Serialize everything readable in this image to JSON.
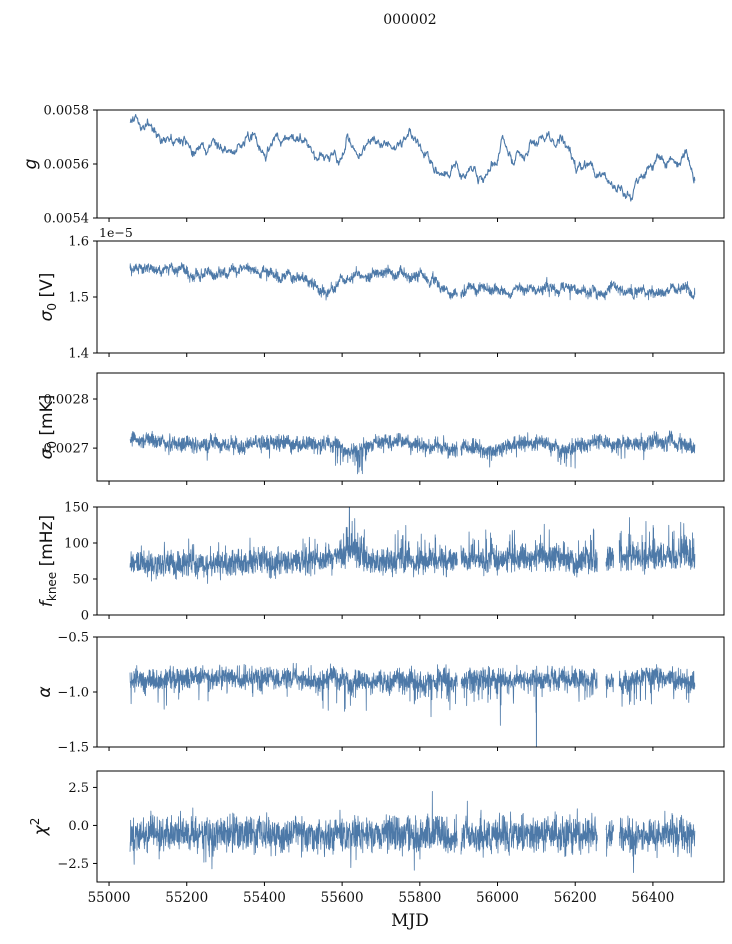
{
  "title": "000002",
  "colors": {
    "line": "#4d79a8",
    "axis": "#000000",
    "text": "#111111"
  },
  "x_axis": {
    "label": "MJD",
    "xlim": [
      54969,
      56583
    ],
    "data_range": [
      55054,
      56508
    ],
    "xticks": [
      55000,
      55200,
      55400,
      55600,
      55800,
      56000,
      56200,
      56400
    ],
    "xtick_labels": [
      "55000",
      "55200",
      "55400",
      "55600",
      "55800",
      "56000",
      "56200",
      "56400"
    ]
  },
  "chart_data": [
    {
      "id": "g",
      "type": "line",
      "ylabel": "g",
      "ylabel_parts": [
        {
          "t": "g",
          "style": "italic"
        }
      ],
      "ylim": [
        0.0054,
        0.0058
      ],
      "yticks": [
        0.0054,
        0.0056,
        0.0058
      ],
      "ytick_labels": [
        "0.0054",
        "0.0056",
        "0.0058"
      ],
      "offset_text": "",
      "seed": 11,
      "points": 1200,
      "line_width": 1.1,
      "trend": {
        "x": [
          55054,
          55070,
          55085,
          55105,
          55125,
          55150,
          55170,
          55195,
          55215,
          55235,
          55252,
          55268,
          55285,
          55305,
          55325,
          55345,
          55365,
          55385,
          55405,
          55425,
          55442,
          55458,
          55475,
          55492,
          55510,
          55530,
          55550,
          55568,
          55585,
          55600,
          55612,
          55625,
          55640,
          55658,
          55675,
          55695,
          55715,
          55735,
          55755,
          55775,
          55795,
          55815,
          55835,
          55855,
          55875,
          55895,
          55915,
          55932,
          55950,
          55968,
          55985,
          56000,
          56012,
          56028,
          56045,
          56065,
          56085,
          56105,
          56125,
          56145,
          56162,
          56180,
          56200,
          56220,
          56240,
          56260,
          56280,
          56300,
          56320,
          56345,
          56370,
          56395,
          56420,
          56445,
          56465,
          56485,
          56505
        ],
        "y": [
          0.00575,
          0.00578,
          0.00573,
          0.00574,
          0.00571,
          0.00567,
          0.00569,
          0.0057,
          0.00568,
          0.00567,
          0.00563,
          0.00568,
          0.00566,
          0.00569,
          0.00565,
          0.00568,
          0.00571,
          0.00569,
          0.00566,
          0.00572,
          0.00567,
          0.00573,
          0.0057,
          0.00569,
          0.00566,
          0.00562,
          0.00561,
          0.00563,
          0.0056,
          0.00561,
          0.00572,
          0.00567,
          0.00564,
          0.00567,
          0.0057,
          0.00568,
          0.0057,
          0.00569,
          0.0057,
          0.0057,
          0.00567,
          0.00563,
          0.00559,
          0.00557,
          0.00558,
          0.0056,
          0.00558,
          0.00561,
          0.00556,
          0.00552,
          0.00558,
          0.00561,
          0.0057,
          0.00567,
          0.00563,
          0.00562,
          0.00566,
          0.00566,
          0.00569,
          0.0057,
          0.00571,
          0.00567,
          0.0056,
          0.00556,
          0.00557,
          0.00555,
          0.00552,
          0.0055,
          0.00549,
          0.00545,
          0.00556,
          0.00562,
          0.0056,
          0.00562,
          0.00559,
          0.00561,
          0.00554
        ]
      },
      "noise": {
        "hw": 9e-06,
        "ar_amp": 1.3e-05,
        "ar_rho": 0.93
      },
      "gaps": [],
      "spikes": {
        "prob": 0,
        "scale": 0,
        "sign": 0
      },
      "zones": []
    },
    {
      "id": "sigma0_V",
      "type": "line",
      "ylabel": "σ0 [V]",
      "ylabel_parts": [
        {
          "t": "σ",
          "style": "italic"
        },
        {
          "t": "0",
          "pos": "sub"
        },
        {
          "t": " [V]"
        }
      ],
      "ylim": [
        1.4,
        1.6
      ],
      "yticks": [
        1.4,
        1.5,
        1.6
      ],
      "ytick_labels": [
        "1.4",
        "1.5",
        "1.6"
      ],
      "offset_text": "1e−5",
      "seed": 22,
      "points": 2600,
      "line_width": 0.8,
      "trend": {
        "x": [
          55054,
          55100,
          55150,
          55200,
          55250,
          55300,
          55350,
          55400,
          55450,
          55490,
          55520,
          55545,
          55570,
          55600,
          55640,
          55680,
          55720,
          55760,
          55800,
          55830,
          55860,
          55885,
          55905,
          55935,
          55965,
          56000,
          56040,
          56080,
          56110,
          56140,
          56170,
          56195,
          56225,
          56255,
          56285,
          56320,
          56355,
          56390,
          56425,
          56455,
          56480,
          56505
        ],
        "y": [
          1.556,
          1.552,
          1.547,
          1.545,
          1.546,
          1.544,
          1.545,
          1.543,
          1.541,
          1.536,
          1.524,
          1.51,
          1.513,
          1.527,
          1.542,
          1.545,
          1.546,
          1.544,
          1.542,
          1.534,
          1.52,
          1.512,
          1.508,
          1.51,
          1.512,
          1.512,
          1.513,
          1.52,
          1.517,
          1.513,
          1.505,
          1.508,
          1.51,
          1.505,
          1.51,
          1.514,
          1.512,
          1.508,
          1.512,
          1.516,
          1.52,
          1.508
        ]
      },
      "noise": {
        "hw": 0.011,
        "ar_amp": 0.003,
        "ar_rho": 0.95
      },
      "gaps": [
        [
          55897,
          55905
        ]
      ],
      "spikes": {
        "prob": 0.008,
        "scale": 1.5,
        "sign": -1
      },
      "zones": [
        {
          "range": [
            56150,
            56210
          ],
          "prob": 0.05,
          "scale": 2.4,
          "sign": -1
        },
        {
          "range": [
            55520,
            55560
          ],
          "prob": 0.04,
          "scale": 1.5,
          "sign": -1
        }
      ]
    },
    {
      "id": "sigma0_mK",
      "type": "line",
      "ylabel": "σ0 [mK]",
      "ylabel_parts": [
        {
          "t": "σ",
          "style": "italic"
        },
        {
          "t": "0",
          "pos": "sub"
        },
        {
          "t": " [mK]"
        }
      ],
      "ylim": [
        0.002633,
        0.002853
      ],
      "yticks": [
        0.0027,
        0.0028
      ],
      "ytick_labels": [
        "0.0027",
        "0.0028"
      ],
      "offset_text": "",
      "seed": 33,
      "points": 2600,
      "line_width": 0.8,
      "trend": {
        "x": [
          55054,
          55120,
          55200,
          55280,
          55360,
          55440,
          55520,
          55570,
          55610,
          55650,
          55690,
          55730,
          55780,
          55830,
          55880,
          55930,
          55980,
          56030,
          56080,
          56130,
          56165,
          56200,
          56250,
          56300,
          56360,
          56420,
          56470,
          56505
        ],
        "y": [
          0.002715,
          0.002713,
          0.00271,
          0.002709,
          0.002708,
          0.002712,
          0.002707,
          0.002705,
          0.002698,
          0.002696,
          0.00271,
          0.002713,
          0.002708,
          0.002701,
          0.0027,
          0.002703,
          0.002696,
          0.002701,
          0.002712,
          0.002712,
          0.002695,
          0.002705,
          0.00271,
          0.002709,
          0.002713,
          0.002712,
          0.002709,
          0.002704
        ]
      },
      "noise": {
        "hw": 2.1e-05,
        "ar_amp": 3e-06,
        "ar_rho": 0.9
      },
      "gaps": [
        [
          55897,
          55905
        ]
      ],
      "spikes": {
        "prob": 0.01,
        "scale": 1.5,
        "sign": -1
      },
      "zones": [
        {
          "range": [
            55580,
            55665
          ],
          "prob": 0.12,
          "scale": 2.4,
          "sign": -1
        },
        {
          "range": [
            56150,
            56205
          ],
          "prob": 0.1,
          "scale": 2.2,
          "sign": -1
        },
        {
          "range": [
            56290,
            56340
          ],
          "prob": 0.05,
          "scale": 1.8,
          "sign": -1
        }
      ]
    },
    {
      "id": "fknee",
      "type": "line",
      "ylabel": "fknee [mHz]",
      "ylabel_parts": [
        {
          "t": "f",
          "style": "italic"
        },
        {
          "t": "knee",
          "pos": "sub"
        },
        {
          "t": " [mHz]"
        }
      ],
      "ylim": [
        0,
        150
      ],
      "yticks": [
        0,
        50,
        100,
        150
      ],
      "ytick_labels": [
        "0",
        "50",
        "100",
        "150"
      ],
      "offset_text": "",
      "seed": 44,
      "points": 2600,
      "line_width": 0.8,
      "trend": {
        "x": [
          55054,
          55150,
          55250,
          55350,
          55450,
          55550,
          55600,
          55630,
          55660,
          55720,
          55780,
          55840,
          55900,
          55960,
          56020,
          56080,
          56140,
          56200,
          56250,
          56320,
          56380,
          56440,
          56505
        ],
        "y": [
          72,
          71,
          72,
          73,
          72,
          75,
          82,
          88,
          76,
          74,
          76,
          75,
          76,
          78,
          78,
          80,
          78,
          76,
          75,
          82,
          80,
          82,
          78
        ]
      },
      "noise": {
        "hw": 26,
        "ar_amp": 2,
        "ar_rho": 0.9
      },
      "clamp": [
        25,
        150
      ],
      "gaps": [
        [
          55897,
          55906
        ],
        [
          56257,
          56279
        ],
        [
          56299,
          56313
        ]
      ],
      "spikes": {
        "prob": 0.025,
        "scale": 1.5,
        "sign": 1
      },
      "zones": [
        {
          "range": [
            55590,
            55665
          ],
          "prob": 0.12,
          "scale": 2.1,
          "sign": 1
        },
        {
          "range": [
            55900,
            56255
          ],
          "prob": 0.05,
          "scale": 1.8,
          "sign": 1
        },
        {
          "range": [
            56300,
            56508
          ],
          "prob": 0.09,
          "scale": 2.0,
          "sign": 1
        }
      ]
    },
    {
      "id": "alpha",
      "type": "line",
      "ylabel": "α",
      "ylabel_parts": [
        {
          "t": "α",
          "style": "italic"
        }
      ],
      "ylim": [
        -1.5,
        -0.5
      ],
      "yticks": [
        -1.5,
        -1.0,
        -0.5
      ],
      "ytick_labels": [
        "−1.5",
        "−1.0",
        "−0.5"
      ],
      "offset_text": "",
      "seed": 55,
      "points": 2600,
      "line_width": 0.8,
      "trend": {
        "x": [
          55054,
          55200,
          55400,
          55600,
          55800,
          56000,
          56200,
          56400,
          56505
        ],
        "y": [
          -0.88,
          -0.87,
          -0.88,
          -0.89,
          -0.9,
          -0.88,
          -0.89,
          -0.87,
          -0.88
        ]
      },
      "noise": {
        "hw": 0.14,
        "ar_amp": 0.015,
        "ar_rho": 0.9
      },
      "gaps": [
        [
          55897,
          55906
        ],
        [
          56257,
          56279
        ],
        [
          56299,
          56313
        ]
      ],
      "spikes": {
        "prob": 0.04,
        "scale": 1.7,
        "sign": -1
      },
      "zones": [
        {
          "range": [
            55750,
            56010
          ],
          "prob": 0.07,
          "scale": 2.0,
          "sign": -1
        },
        {
          "range": [
            56099,
            56104
          ],
          "prob": 0.25,
          "scale": 6.5,
          "sign": -1
        },
        {
          "range": [
            56310,
            56410
          ],
          "prob": 0.05,
          "scale": 2.0,
          "sign": -1
        }
      ]
    },
    {
      "id": "chi2",
      "type": "line",
      "ylabel": "χ2",
      "ylabel_parts": [
        {
          "t": "χ",
          "style": "italic"
        },
        {
          "t": "2",
          "pos": "sup"
        }
      ],
      "ylim": [
        -3.72,
        3.58
      ],
      "yticks": [
        -2.5,
        0.0,
        2.5
      ],
      "ytick_labels": [
        "−2.5",
        "0.0",
        "2.5"
      ],
      "offset_text": "",
      "seed": 66,
      "points": 2600,
      "line_width": 0.8,
      "trend": {
        "x": [
          55054,
          55300,
          55600,
          55900,
          56200,
          56505
        ],
        "y": [
          -0.55,
          -0.58,
          -0.55,
          -0.6,
          -0.55,
          -0.55
        ]
      },
      "noise": {
        "hw": 1.65,
        "ar_amp": 0.12,
        "ar_rho": 0.9
      },
      "gaps": [
        [
          55897,
          55906
        ],
        [
          56257,
          56279
        ],
        [
          56299,
          56313
        ]
      ],
      "spikes": {
        "prob": 0.02,
        "scale": 1.3,
        "sign": 0
      },
      "zones": []
    }
  ]
}
